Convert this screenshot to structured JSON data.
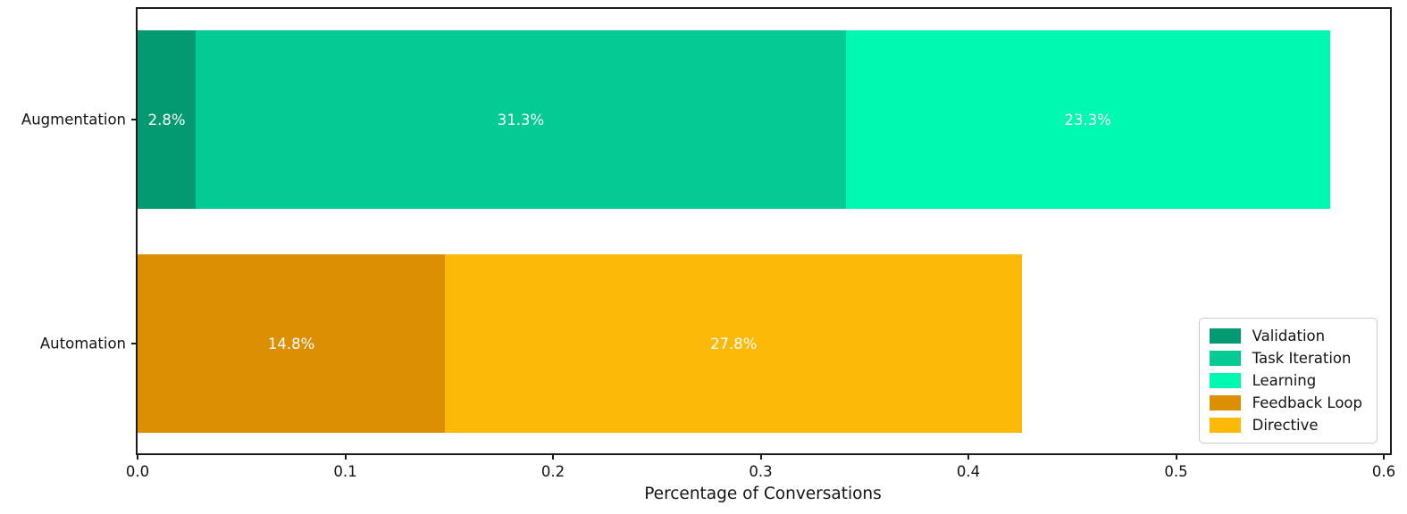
{
  "chart_data": {
    "type": "bar",
    "orientation": "horizontal",
    "stacked": true,
    "title": "",
    "xlabel": "Percentage of Conversations",
    "ylabel": "",
    "xlim": [
      0,
      0.603
    ],
    "grid": false,
    "categories": [
      "Augmentation",
      "Automation"
    ],
    "series": [
      {
        "name": "Validation",
        "color": "#039a71",
        "values": [
          0.028,
          0
        ]
      },
      {
        "name": "Task Iteration",
        "color": "#04cb94",
        "values": [
          0.313,
          0
        ]
      },
      {
        "name": "Learning",
        "color": "#00f9b1",
        "values": [
          0.233,
          0
        ]
      },
      {
        "name": "Feedback Loop",
        "color": "#dd8f04",
        "values": [
          0,
          0.148
        ]
      },
      {
        "name": "Directive",
        "color": "#fdb908",
        "values": [
          0,
          0.278
        ]
      }
    ],
    "bar_labels": [
      [
        "2.8%",
        "31.3%",
        "23.3%"
      ],
      [
        "14.8%",
        "27.8%"
      ]
    ],
    "bar_label_color": "#ffffff",
    "xticks": [
      0.0,
      0.1,
      0.2,
      0.3,
      0.4,
      0.5,
      0.6
    ],
    "xtick_labels": [
      "0.0",
      "0.1",
      "0.2",
      "0.3",
      "0.4",
      "0.5",
      "0.6"
    ],
    "axis_color": "#1c1c1c",
    "legend": {
      "position": "lower right",
      "entries": [
        {
          "label": "Validation",
          "color": "#039a71"
        },
        {
          "label": "Task Iteration",
          "color": "#04cb94"
        },
        {
          "label": "Learning",
          "color": "#00f9b1"
        },
        {
          "label": "Feedback Loop",
          "color": "#dd8f04"
        },
        {
          "label": "Directive",
          "color": "#fdb908"
        }
      ]
    }
  }
}
